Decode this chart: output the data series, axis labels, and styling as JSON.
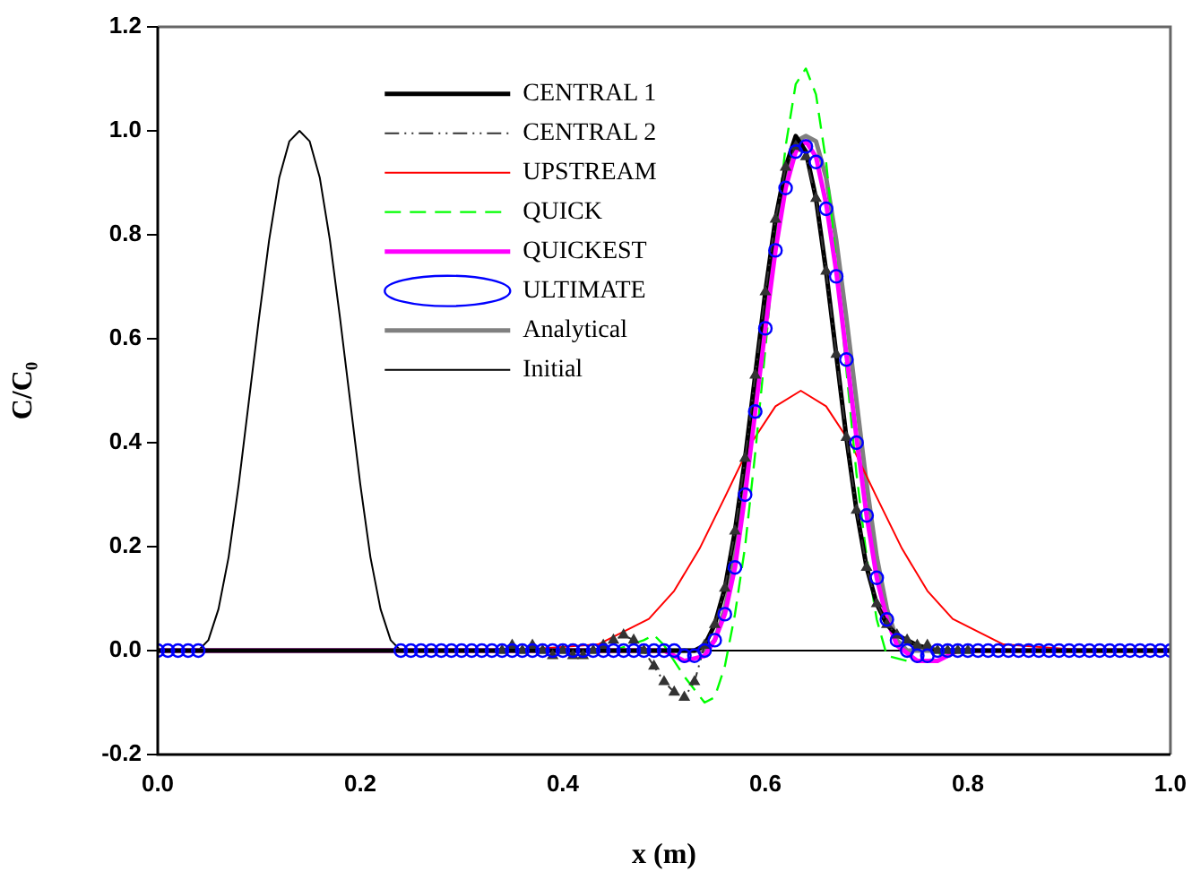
{
  "chart_data": {
    "type": "line",
    "xlabel": "x (m)",
    "ylabel": "C/C₀",
    "xlim": [
      0,
      1
    ],
    "ylim": [
      -0.2,
      1.2
    ],
    "xticks": [
      {
        "value": 0,
        "label": "0.0"
      },
      {
        "value": 0.2,
        "label": "0.2"
      },
      {
        "value": 0.4,
        "label": "0.4"
      },
      {
        "value": 0.6,
        "label": "0.6"
      },
      {
        "value": 0.8,
        "label": "0.8"
      },
      {
        "value": 1,
        "label": "1.0"
      }
    ],
    "yticks": [
      {
        "value": -0.2,
        "label": "-0.2"
      },
      {
        "value": 0,
        "label": "0.0"
      },
      {
        "value": 0.2,
        "label": "0.2"
      },
      {
        "value": 0.4,
        "label": "0.4"
      },
      {
        "value": 0.6,
        "label": "0.6"
      },
      {
        "value": 0.8,
        "label": "0.8"
      },
      {
        "value": 1,
        "label": "1.0"
      },
      {
        "value": 1.2,
        "label": "1.2"
      }
    ],
    "grid": false,
    "legend": "top left",
    "series": [
      {
        "name": "Initial",
        "color": "#000000",
        "line_style": "solid",
        "marker": "none",
        "x": [
          0,
          0.04,
          0.05,
          0.06,
          0.07,
          0.08,
          0.09,
          0.1,
          0.11,
          0.12,
          0.13,
          0.14,
          0.15,
          0.16,
          0.17,
          0.18,
          0.19,
          0.2,
          0.21,
          0.22,
          0.23,
          0.24,
          1
        ],
        "values": [
          0,
          0,
          0.02,
          0.08,
          0.18,
          0.32,
          0.48,
          0.64,
          0.79,
          0.91,
          0.98,
          1.0,
          0.98,
          0.91,
          0.79,
          0.64,
          0.48,
          0.32,
          0.18,
          0.08,
          0.02,
          0,
          0
        ]
      },
      {
        "name": "Analytical",
        "color": "#808080",
        "line_style": "solid",
        "marker": "none",
        "x": [
          0,
          0.54,
          0.55,
          0.56,
          0.57,
          0.58,
          0.59,
          0.6,
          0.61,
          0.62,
          0.63,
          0.64,
          0.65,
          0.66,
          0.67,
          0.68,
          0.69,
          0.7,
          0.71,
          0.72,
          0.73,
          0.74,
          1
        ],
        "values": [
          0,
          0,
          0.02,
          0.08,
          0.18,
          0.32,
          0.48,
          0.64,
          0.79,
          0.91,
          0.98,
          0.99,
          0.98,
          0.91,
          0.79,
          0.64,
          0.48,
          0.32,
          0.18,
          0.08,
          0.02,
          0,
          0
        ]
      },
      {
        "name": "UPSTREAM",
        "color": "#ff0000",
        "line_style": "solid",
        "marker": "none",
        "x": [
          0,
          0.35,
          0.435,
          0.485,
          0.51,
          0.535,
          0.56,
          0.585,
          0.61,
          0.635,
          0.66,
          0.685,
          0.71,
          0.735,
          0.76,
          0.785,
          0.835,
          0.92,
          1
        ],
        "values": [
          0,
          0,
          0.012,
          0.061,
          0.115,
          0.196,
          0.295,
          0.396,
          0.47,
          0.5,
          0.47,
          0.396,
          0.295,
          0.196,
          0.115,
          0.061,
          0.012,
          0,
          0
        ]
      },
      {
        "name": "QUICK",
        "color": "#00ff00",
        "line_style": "dashed",
        "marker": "none",
        "x": [
          0,
          0.45,
          0.48,
          0.49,
          0.5,
          0.52,
          0.54,
          0.55,
          0.56,
          0.57,
          0.58,
          0.59,
          0.6,
          0.61,
          0.62,
          0.63,
          0.64,
          0.65,
          0.66,
          0.67,
          0.68,
          0.69,
          0.7,
          0.71,
          0.72,
          0.74,
          0.76,
          0.78,
          1
        ],
        "values": [
          0,
          0,
          0.02,
          0.03,
          0.01,
          -0.05,
          -0.1,
          -0.09,
          -0.03,
          0.07,
          0.2,
          0.38,
          0.58,
          0.79,
          0.97,
          1.09,
          1.12,
          1.07,
          0.94,
          0.75,
          0.54,
          0.34,
          0.18,
          0.06,
          -0.01,
          -0.02,
          -0.02,
          0,
          0
        ]
      },
      {
        "name": "QUICKEST",
        "color": "#ff00ff",
        "line_style": "solid",
        "marker": "none",
        "x": [
          0,
          0.5,
          0.52,
          0.54,
          0.55,
          0.56,
          0.57,
          0.58,
          0.59,
          0.6,
          0.61,
          0.62,
          0.63,
          0.64,
          0.65,
          0.66,
          0.67,
          0.68,
          0.69,
          0.7,
          0.71,
          0.72,
          0.73,
          0.75,
          0.77,
          0.79,
          1
        ],
        "values": [
          0,
          0,
          -0.02,
          -0.01,
          0.02,
          0.07,
          0.16,
          0.3,
          0.46,
          0.62,
          0.77,
          0.89,
          0.96,
          0.98,
          0.95,
          0.86,
          0.73,
          0.57,
          0.41,
          0.26,
          0.14,
          0.06,
          0.01,
          -0.02,
          -0.02,
          0,
          0
        ]
      },
      {
        "name": "CENTRAL 1",
        "color": "#000000",
        "line_style": "solid",
        "marker": "none",
        "x": [
          0,
          0.53,
          0.54,
          0.55,
          0.56,
          0.57,
          0.58,
          0.59,
          0.6,
          0.61,
          0.62,
          0.63,
          0.64,
          0.65,
          0.66,
          0.67,
          0.68,
          0.69,
          0.7,
          0.71,
          0.72,
          0.73,
          0.74,
          0.75,
          0.77,
          1
        ],
        "values": [
          0,
          0,
          0.01,
          0.05,
          0.12,
          0.23,
          0.37,
          0.53,
          0.69,
          0.83,
          0.93,
          0.99,
          0.96,
          0.87,
          0.73,
          0.57,
          0.41,
          0.27,
          0.16,
          0.09,
          0.05,
          0.03,
          0.02,
          0.01,
          0,
          0
        ]
      },
      {
        "name": "CENTRAL 2",
        "color": "#333333",
        "line_style": "dashdot",
        "marker": "triangle",
        "x": [
          0.34,
          0.35,
          0.36,
          0.37,
          0.38,
          0.39,
          0.4,
          0.41,
          0.42,
          0.43,
          0.44,
          0.45,
          0.46,
          0.47,
          0.48,
          0.49,
          0.5,
          0.51,
          0.52,
          0.53,
          0.54,
          0.55,
          0.56,
          0.57,
          0.58,
          0.59,
          0.6,
          0.61,
          0.62,
          0.63,
          0.64,
          0.65,
          0.66,
          0.67,
          0.68,
          0.69,
          0.7,
          0.71,
          0.72,
          0.73,
          0.74,
          0.75,
          0.76,
          0.77,
          0.78,
          0.79,
          0.8
        ],
        "values": [
          0,
          0.01,
          0,
          0.01,
          0,
          -0.01,
          0,
          -0.01,
          -0.01,
          0,
          0.01,
          0.02,
          0.03,
          0.02,
          0,
          -0.03,
          -0.06,
          -0.08,
          -0.09,
          -0.06,
          0.01,
          0.05,
          0.12,
          0.23,
          0.37,
          0.53,
          0.69,
          0.83,
          0.93,
          0.97,
          0.95,
          0.87,
          0.73,
          0.57,
          0.41,
          0.27,
          0.16,
          0.09,
          0.05,
          0.03,
          0.02,
          0.01,
          0.01,
          0,
          0,
          0,
          0
        ]
      },
      {
        "name": "ULTIMATE",
        "color": "#0000ff",
        "type": "scatter",
        "marker": "circle",
        "x": [
          0,
          0.01,
          0.02,
          0.03,
          0.04,
          0.24,
          0.25,
          0.26,
          0.27,
          0.28,
          0.29,
          0.3,
          0.31,
          0.32,
          0.33,
          0.34,
          0.35,
          0.36,
          0.37,
          0.38,
          0.39,
          0.4,
          0.41,
          0.42,
          0.43,
          0.44,
          0.45,
          0.46,
          0.47,
          0.48,
          0.49,
          0.5,
          0.51,
          0.52,
          0.53,
          0.54,
          0.55,
          0.56,
          0.57,
          0.58,
          0.59,
          0.6,
          0.61,
          0.62,
          0.63,
          0.64,
          0.65,
          0.66,
          0.67,
          0.68,
          0.69,
          0.7,
          0.71,
          0.72,
          0.73,
          0.74,
          0.75,
          0.76,
          0.77,
          0.78,
          0.79,
          0.8,
          0.81,
          0.82,
          0.83,
          0.84,
          0.85,
          0.86,
          0.87,
          0.88,
          0.89,
          0.9,
          0.91,
          0.92,
          0.93,
          0.94,
          0.95,
          0.96,
          0.97,
          0.98,
          0.99,
          1.0
        ],
        "values": [
          0,
          0,
          0,
          0,
          0,
          0,
          0,
          0,
          0,
          0,
          0,
          0,
          0,
          0,
          0,
          0,
          0,
          0,
          0,
          0,
          0,
          0,
          0,
          0,
          0,
          0,
          0,
          0,
          0,
          0,
          0,
          0,
          0,
          -0.01,
          -0.01,
          0,
          0.02,
          0.07,
          0.16,
          0.3,
          0.46,
          0.62,
          0.77,
          0.89,
          0.96,
          0.97,
          0.94,
          0.85,
          0.72,
          0.56,
          0.4,
          0.26,
          0.14,
          0.06,
          0.02,
          0,
          -0.01,
          -0.01,
          0,
          0,
          0,
          0,
          0,
          0,
          0,
          0,
          0,
          0,
          0,
          0,
          0,
          0,
          0,
          0,
          0,
          0,
          0,
          0,
          0,
          0,
          0,
          0
        ]
      }
    ]
  }
}
